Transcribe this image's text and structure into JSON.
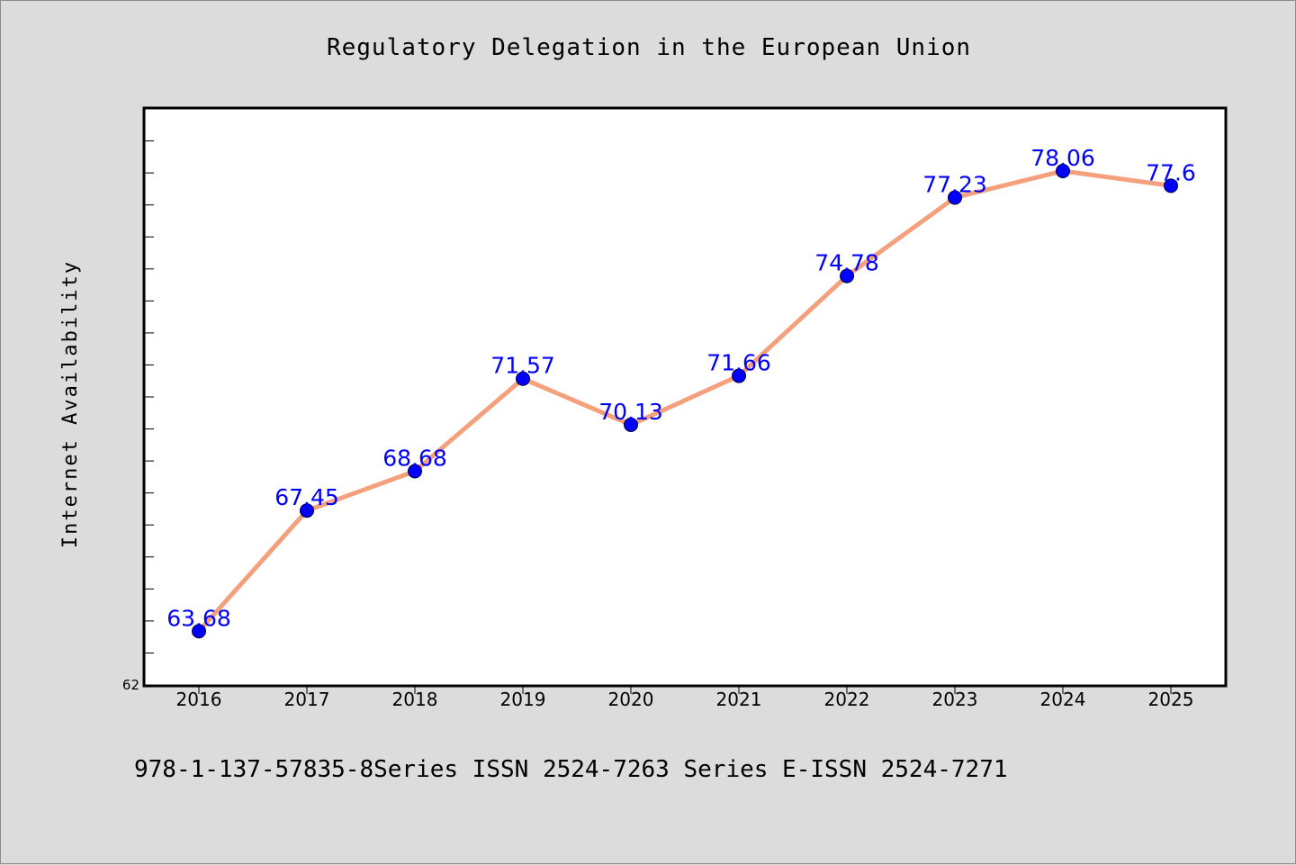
{
  "chart_data": {
    "type": "line",
    "title": "Regulatory Delegation in the European Union",
    "xlabel": "",
    "ylabel": "Internet Availability",
    "categories": [
      "2016",
      "2017",
      "2018",
      "2019",
      "2020",
      "2021",
      "2022",
      "2023",
      "2024",
      "2025"
    ],
    "series": [
      {
        "values": [
          63.68,
          67.45,
          68.68,
          71.57,
          70.13,
          71.66,
          74.78,
          77.23,
          78.06,
          77.6
        ],
        "labels": [
          "63.68",
          "67.45",
          "68.68",
          "71.57",
          "70.13",
          "71.66",
          "74.78",
          "77.23",
          "78.06",
          "77.6"
        ],
        "line_color": "#f4a07c",
        "marker_color": "#0000ff"
      }
    ],
    "ylim": [
      62,
      80
    ],
    "ytick_labels": [
      "62"
    ],
    "grid": false,
    "legend": "none"
  },
  "footer": {
    "text": "978-1-137-57835-8Series ISSN 2524-7263 Series E-ISSN 2524-7271"
  },
  "colors": {
    "background": "#dcdcdc",
    "plot_background": "#ffffff",
    "label_color": "#0000ff"
  }
}
